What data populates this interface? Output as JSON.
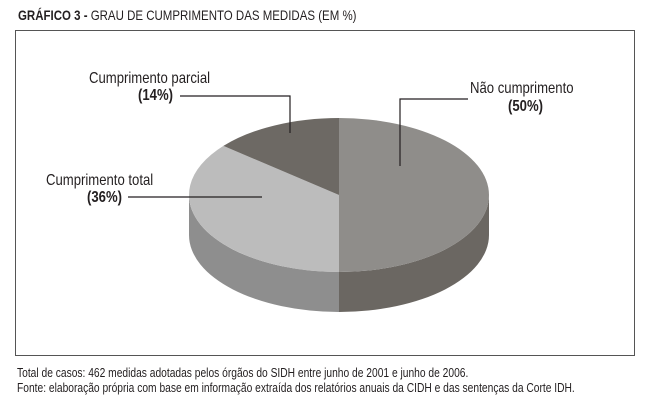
{
  "title_prefix": "GRÁFICO 3 -",
  "title": "GRAU DE CUMPRIMENTO DAS MEDIDAS (EM %)",
  "chart_data": {
    "type": "pie",
    "title": "GRAU DE CUMPRIMENTO DAS MEDIDAS (EM %)",
    "slices": [
      {
        "label": "Não cumprimento",
        "pct_label": "(50%)",
        "value": 50,
        "color": "#8f8d8a",
        "side_color": "#6b6762"
      },
      {
        "label": "Cumprimento total",
        "pct_label": "(36%)",
        "value": 36,
        "color": "#bcbcbc",
        "side_color": "#8e8e8e"
      },
      {
        "label": "Cumprimento parcial",
        "pct_label": "(14%)",
        "value": 14,
        "color": "#6d6964",
        "side_color": "#55524e"
      }
    ]
  },
  "notes": [
    "Total de casos: 462 medidas adotadas pelos órgãos do SIDH entre junho de 2001 e junho de 2006.",
    "Fonte: elaboração própria com base em informação extraída dos relatórios anuais da CIDH e das sentenças da Corte IDH."
  ]
}
